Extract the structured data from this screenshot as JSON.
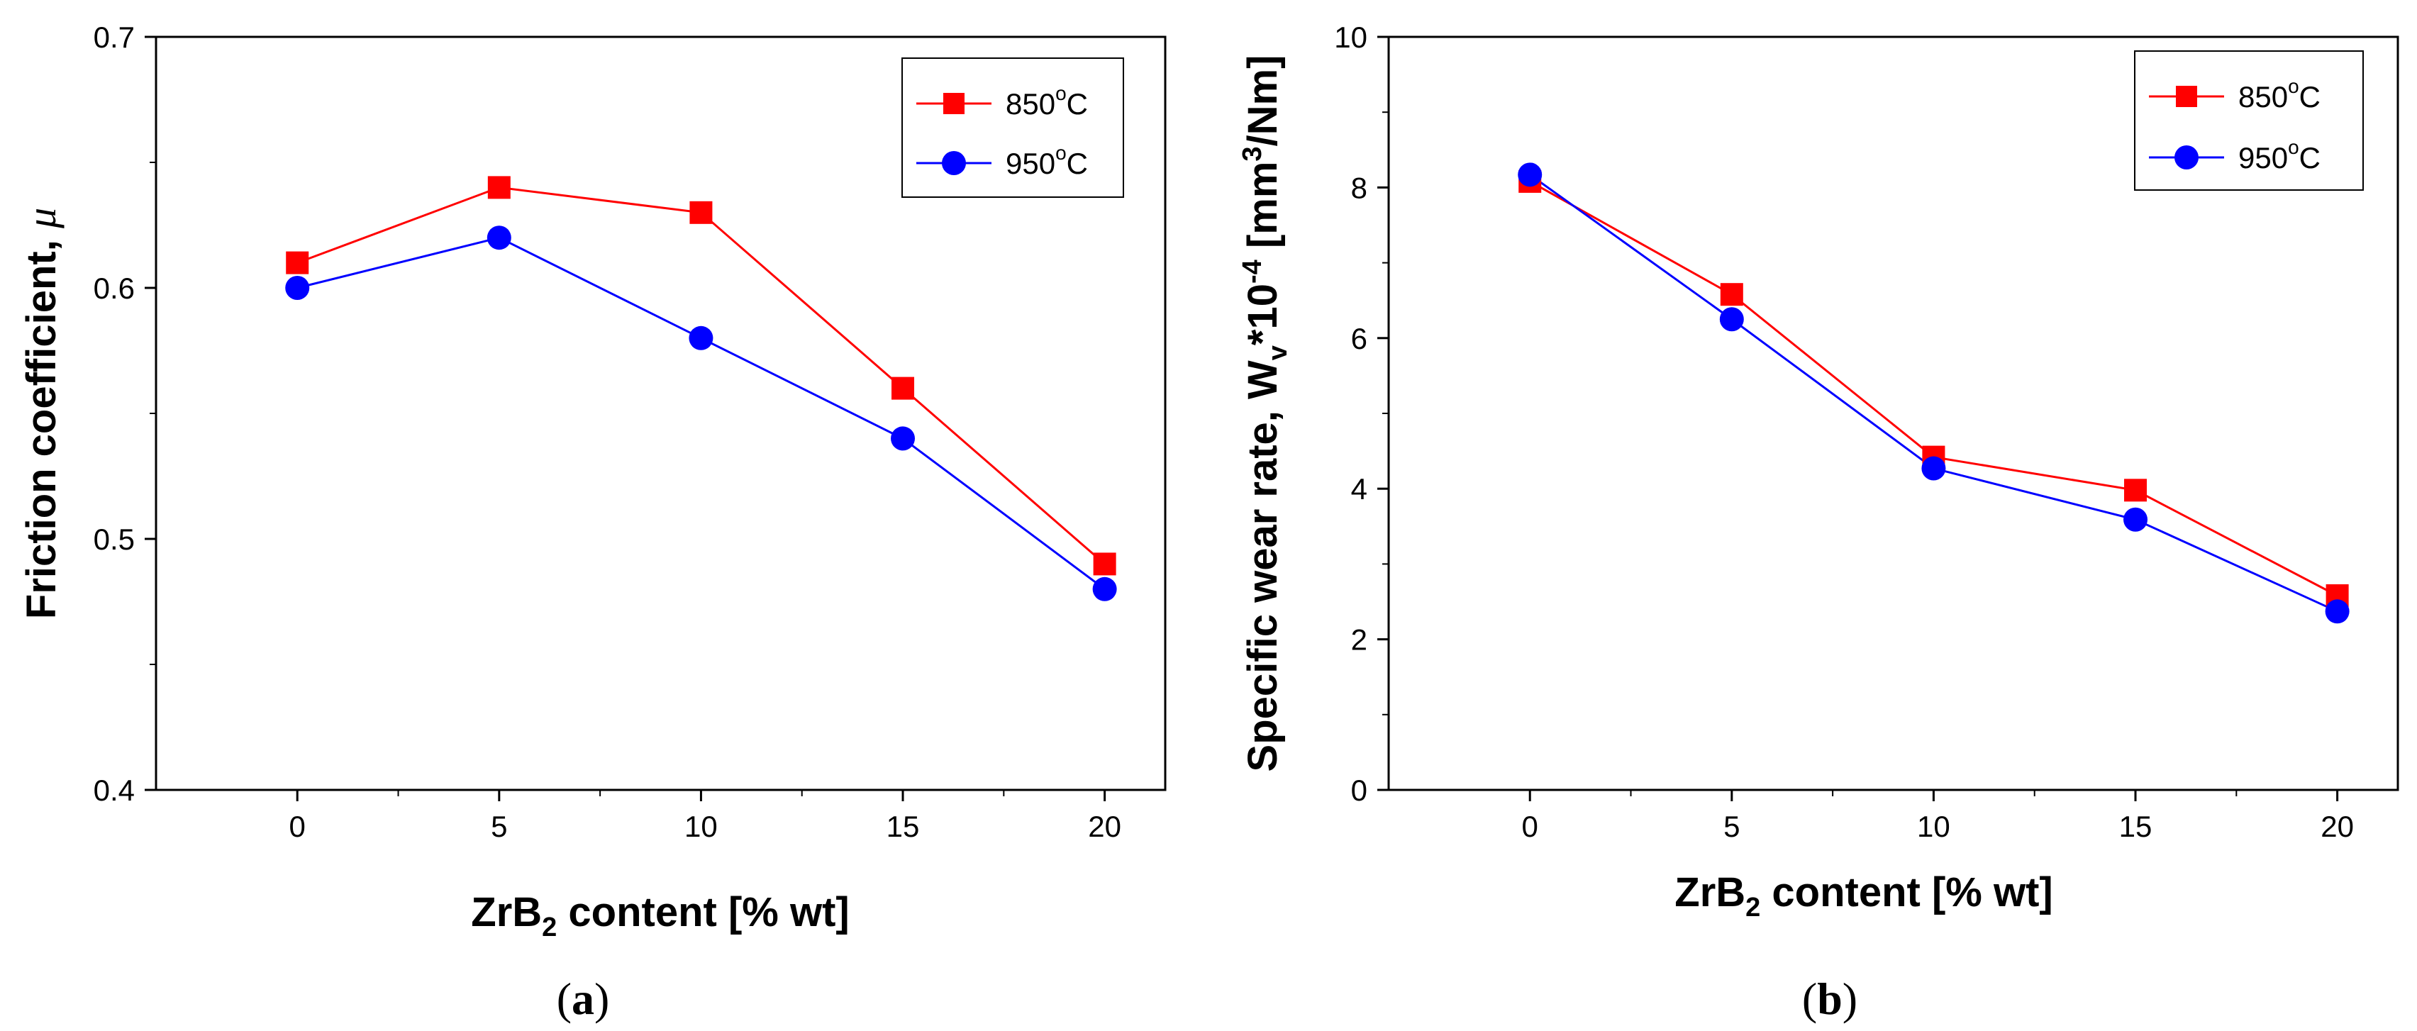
{
  "chart_data": [
    {
      "type": "line",
      "panel_label": "(a)",
      "x": [
        0,
        5,
        10,
        15,
        20
      ],
      "xlim": [
        -3.5,
        21.5
      ],
      "xticks": [
        0,
        5,
        10,
        15,
        20
      ],
      "xtick_labels": [
        "0",
        "5",
        "10",
        "15",
        "20"
      ],
      "ylim": [
        0.4,
        0.7
      ],
      "yticks": [
        0.4,
        0.5,
        0.6,
        0.7
      ],
      "ytick_labels": [
        "0.4",
        "0.5",
        "0.6",
        "0.7"
      ],
      "xlabel_main": "ZrB",
      "xlabel_sub": "2",
      "xlabel_rest": " content [% wt]",
      "ylabel_text": "Friction coefficient, ",
      "ylabel_symbol": "μ",
      "legend_position": "top-right",
      "series": [
        {
          "name": "850",
          "name_degree": "o",
          "name_unit": "C",
          "color": "#ff0000",
          "marker": "square",
          "values": [
            0.61,
            0.64,
            0.63,
            0.56,
            0.49
          ]
        },
        {
          "name": "950",
          "name_degree": "o",
          "name_unit": "C",
          "color": "#0000ff",
          "marker": "circle",
          "values": [
            0.6,
            0.62,
            0.58,
            0.54,
            0.48
          ]
        }
      ]
    },
    {
      "type": "line",
      "panel_label": "(b)",
      "x": [
        0,
        5,
        10,
        15,
        20
      ],
      "xlim": [
        -3.5,
        21.5
      ],
      "xticks": [
        0,
        5,
        10,
        15,
        20
      ],
      "xtick_labels": [
        "0",
        "5",
        "10",
        "15",
        "20"
      ],
      "ylim": [
        0,
        10
      ],
      "yticks": [
        0,
        2,
        4,
        6,
        8,
        10
      ],
      "ytick_labels": [
        "0",
        "2",
        "4",
        "6",
        "8",
        "10"
      ],
      "xlabel_main": "ZrB",
      "xlabel_sub": "2",
      "xlabel_rest": " content [% wt]",
      "ylabel_text": "Specific wear rate,  W",
      "ylabel_sub": "v",
      "ylabel_mid": "*10",
      "ylabel_exp": "-4",
      "ylabel_unit_a": " [mm",
      "ylabel_unit_exp": "3",
      "ylabel_unit_b": "/Nm]",
      "legend_position": "top-right",
      "series": [
        {
          "name": "850",
          "name_degree": "o",
          "name_unit": "C",
          "color": "#ff0000",
          "marker": "square",
          "values": [
            8.08,
            6.58,
            4.42,
            3.98,
            2.58
          ]
        },
        {
          "name": "950",
          "name_degree": "o",
          "name_unit": "C",
          "color": "#0000ff",
          "marker": "circle",
          "values": [
            8.17,
            6.25,
            4.27,
            3.59,
            2.37
          ]
        }
      ]
    }
  ]
}
